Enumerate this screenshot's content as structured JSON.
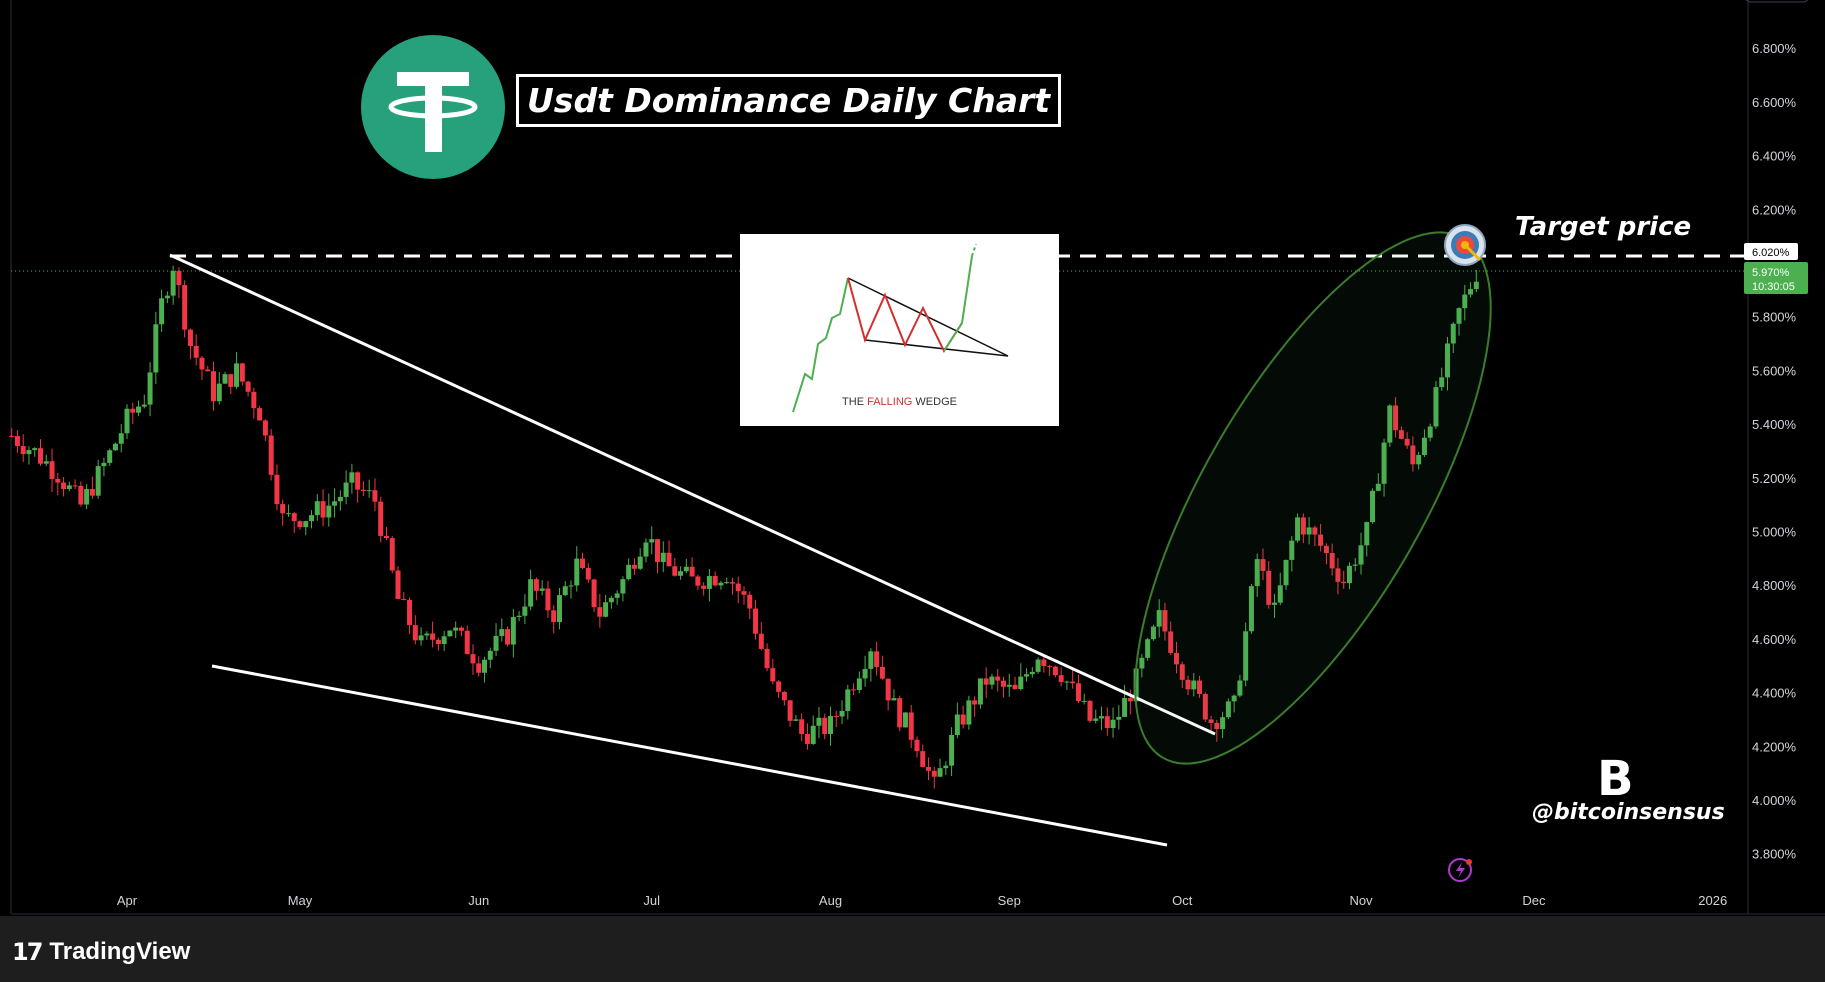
{
  "title": "Usdt Dominance Daily Chart",
  "annotations": {
    "target_label": "Target price",
    "handle": "@bitcoinsensus",
    "brand_letter": "B",
    "inset_text_a": "THE",
    "inset_text_b": "FALLING",
    "inset_text_c": "WEDGE"
  },
  "footer": {
    "brand": "TradingView",
    "mark": "17"
  },
  "price_tags": {
    "target": "6.020%",
    "current": "5.970%",
    "countdown": "10:30:05"
  },
  "colors": {
    "background": "#000000",
    "up": "#4caf50",
    "down": "#f23645",
    "tether": "#26a17b",
    "current_tag": "#4caf50",
    "ellipse": "#3a7d2c"
  },
  "chart_data": {
    "type": "candlestick",
    "title": "Usdt Dominance Daily Chart",
    "xlabel": "",
    "ylabel": "",
    "x_ticks": [
      "Apr",
      "May",
      "Jun",
      "Jul",
      "Aug",
      "Sep",
      "Oct",
      "Nov",
      "Dec",
      "2026"
    ],
    "y_ticks": [
      "3.800%",
      "4.000%",
      "4.200%",
      "4.400%",
      "4.600%",
      "4.800%",
      "5.000%",
      "5.200%",
      "5.400%",
      "5.600%",
      "5.800%",
      "6.000%",
      "6.200%",
      "6.400%",
      "6.600%",
      "6.800%"
    ],
    "ylim": [
      3.7,
      6.9
    ],
    "levels": {
      "target": 6.02,
      "current": 5.97
    },
    "pattern": "falling wedge",
    "series": [
      {
        "name": "close",
        "points": [
          [
            "2025-03-12",
            5.36
          ],
          [
            "2025-03-16",
            5.3
          ],
          [
            "2025-03-20",
            5.22
          ],
          [
            "2025-03-24",
            5.1
          ],
          [
            "2025-03-28",
            5.25
          ],
          [
            "2025-04-01",
            5.42
          ],
          [
            "2025-04-04",
            5.5
          ],
          [
            "2025-04-07",
            5.85
          ],
          [
            "2025-04-09",
            6.0
          ],
          [
            "2025-04-12",
            5.7
          ],
          [
            "2025-04-16",
            5.52
          ],
          [
            "2025-04-20",
            5.6
          ],
          [
            "2025-04-24",
            5.45
          ],
          [
            "2025-04-28",
            5.05
          ],
          [
            "2025-05-02",
            5.06
          ],
          [
            "2025-05-06",
            5.1
          ],
          [
            "2025-05-10",
            5.18
          ],
          [
            "2025-05-14",
            5.12
          ],
          [
            "2025-05-18",
            4.75
          ],
          [
            "2025-05-22",
            4.58
          ],
          [
            "2025-05-27",
            4.65
          ],
          [
            "2025-06-01",
            4.52
          ],
          [
            "2025-06-06",
            4.62
          ],
          [
            "2025-06-10",
            4.8
          ],
          [
            "2025-06-14",
            4.7
          ],
          [
            "2025-06-18",
            4.88
          ],
          [
            "2025-06-22",
            4.7
          ],
          [
            "2025-06-26",
            4.82
          ],
          [
            "2025-06-30",
            5.0
          ],
          [
            "2025-07-03",
            4.88
          ],
          [
            "2025-07-08",
            4.82
          ],
          [
            "2025-07-14",
            4.85
          ],
          [
            "2025-07-18",
            4.72
          ],
          [
            "2025-07-22",
            4.42
          ],
          [
            "2025-07-27",
            4.25
          ],
          [
            "2025-08-01",
            4.28
          ],
          [
            "2025-08-05",
            4.45
          ],
          [
            "2025-08-08",
            4.58
          ],
          [
            "2025-08-12",
            4.35
          ],
          [
            "2025-08-16",
            4.22
          ],
          [
            "2025-08-19",
            4.05
          ],
          [
            "2025-08-23",
            4.28
          ],
          [
            "2025-08-28",
            4.45
          ],
          [
            "2025-09-02",
            4.4
          ],
          [
            "2025-09-06",
            4.55
          ],
          [
            "2025-09-10",
            4.48
          ],
          [
            "2025-09-15",
            4.3
          ],
          [
            "2025-09-19",
            4.28
          ],
          [
            "2025-09-23",
            4.45
          ],
          [
            "2025-09-27",
            4.68
          ],
          [
            "2025-10-02",
            4.45
          ],
          [
            "2025-10-06",
            4.3
          ],
          [
            "2025-10-10",
            4.35
          ],
          [
            "2025-10-14",
            4.9
          ],
          [
            "2025-10-17",
            4.7
          ],
          [
            "2025-10-21",
            5.05
          ],
          [
            "2025-10-25",
            4.95
          ],
          [
            "2025-10-29",
            4.82
          ],
          [
            "2025-11-02",
            5.0
          ],
          [
            "2025-11-06",
            5.45
          ],
          [
            "2025-11-10",
            5.25
          ],
          [
            "2025-11-14",
            5.5
          ],
          [
            "2025-11-18",
            5.82
          ],
          [
            "2025-11-21",
            5.97
          ]
        ]
      }
    ]
  }
}
